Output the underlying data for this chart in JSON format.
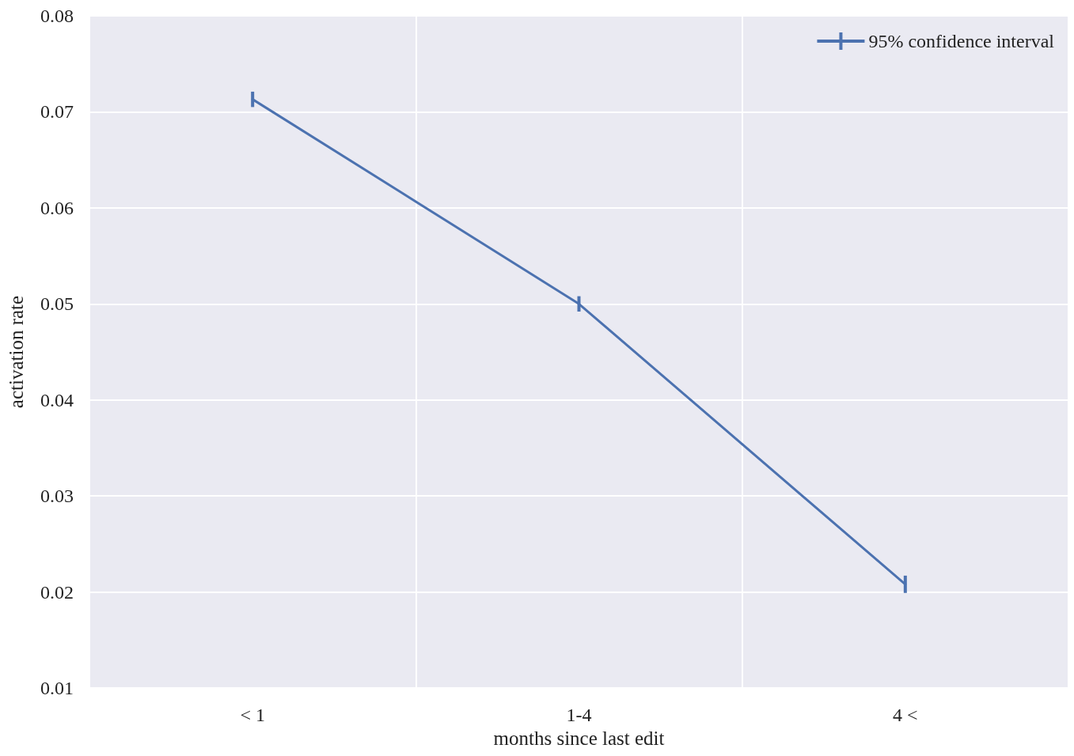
{
  "chart_data": {
    "type": "line",
    "xlabel": "months since last edit",
    "ylabel": "activation rate",
    "categories": [
      "< 1",
      "1-4",
      "4 <"
    ],
    "series": [
      {
        "name": "95% confidence interval",
        "color": "#4c72b0",
        "values": [
          0.0713,
          0.05,
          0.0208
        ],
        "errors": [
          0.0008,
          0.0008,
          0.0009
        ]
      }
    ],
    "ylim": [
      0.01,
      0.08
    ],
    "yticks": [
      0.01,
      0.02,
      0.03,
      0.04,
      0.05,
      0.06,
      0.07,
      0.08
    ],
    "grid": true,
    "legend": "top right",
    "marker": "none",
    "line_style": "solid"
  }
}
